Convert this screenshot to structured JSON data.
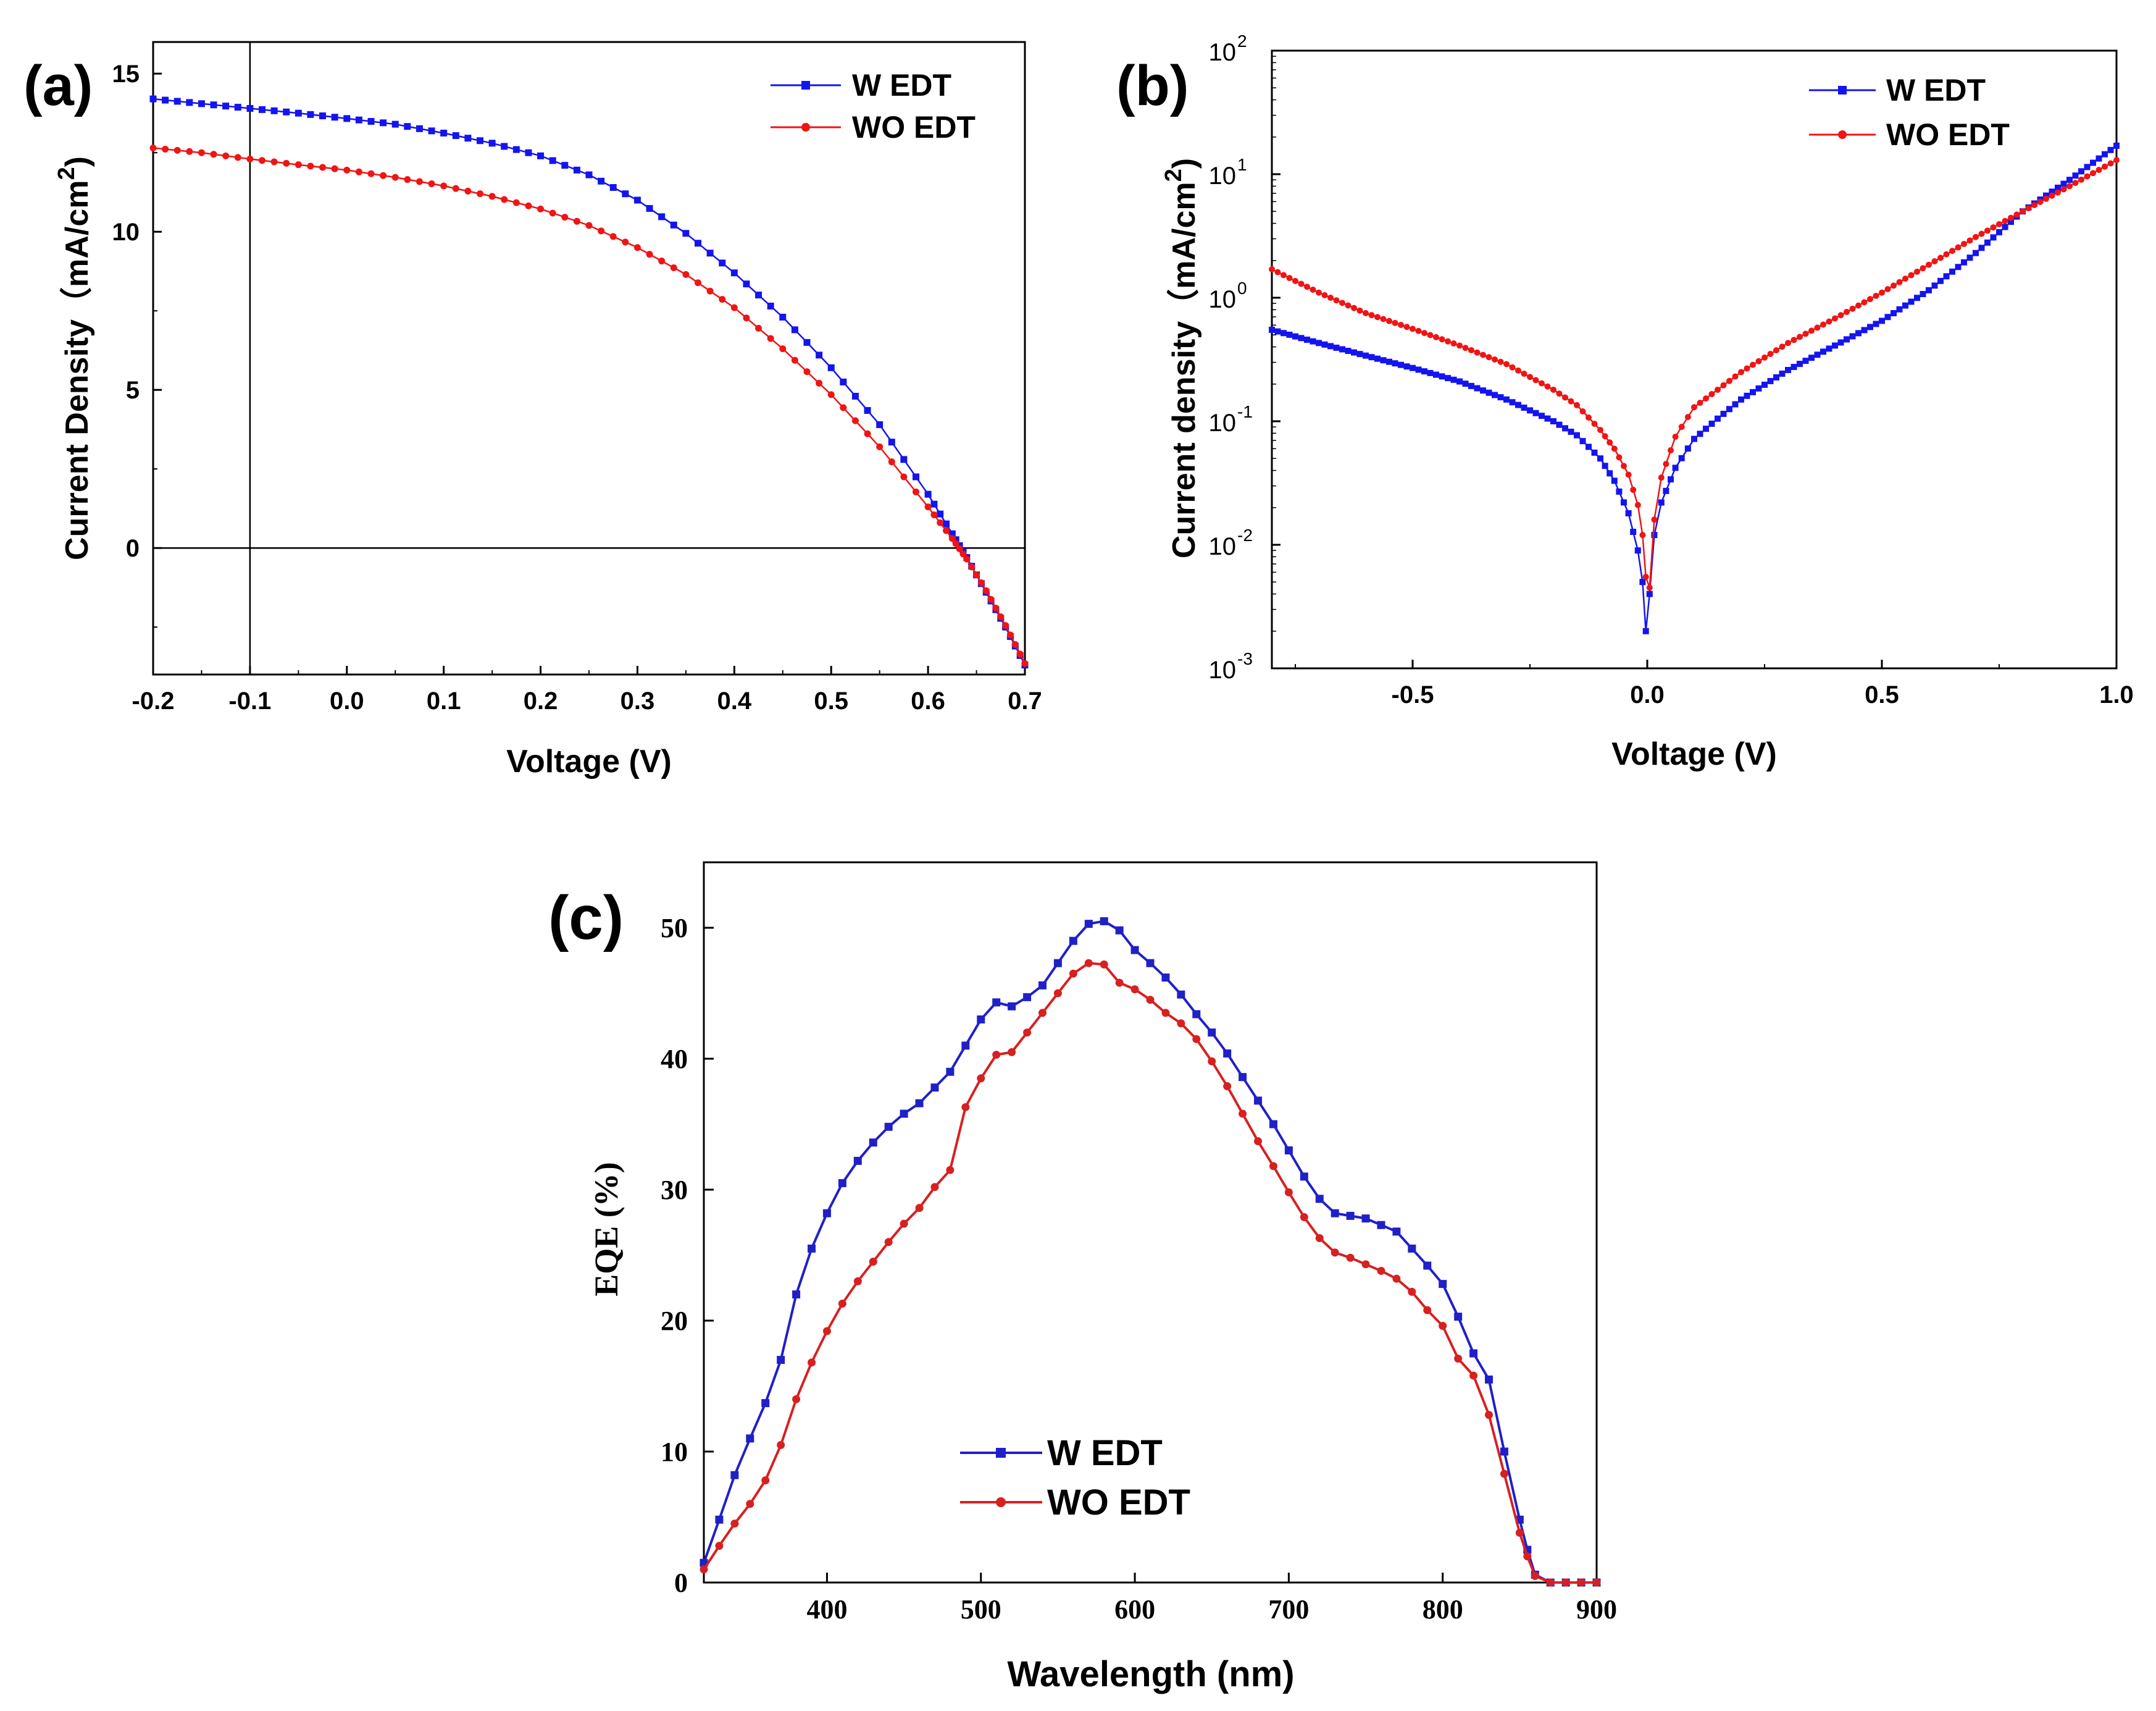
{
  "chart_data": [
    {
      "id": "a",
      "panel_label": "(a)",
      "type": "line",
      "xlabel": "Voltage (V)",
      "ylabel": "Current Density（mA/cm",
      "ylabel_sup": "2",
      "ylabel_close": ")",
      "xlim": [
        -0.2,
        0.7
      ],
      "ylim": [
        -4,
        16
      ],
      "xticks": [
        -0.2,
        -0.1,
        0.0,
        0.1,
        0.2,
        0.3,
        0.4,
        0.5,
        0.6,
        0.7
      ],
      "xtick_labels": [
        "-0.2",
        "-0.1",
        "0.0",
        "0.1",
        "0.2",
        "0.3",
        "0.4",
        "0.5",
        "0.6",
        "0.7"
      ],
      "yticks": [
        0,
        5,
        10,
        15
      ],
      "ytick_labels": [
        "0",
        "5",
        "10",
        "15"
      ],
      "reference_lines": {
        "x": -0.1,
        "y": 0
      },
      "legend": "top-right",
      "series": [
        {
          "name": "W EDT",
          "color": "#1414f0",
          "marker": "square",
          "points": [
            [
              -0.2,
              14.2
            ],
            [
              -0.15,
              14.05
            ],
            [
              -0.1,
              13.9
            ],
            [
              -0.05,
              13.75
            ],
            [
              0.0,
              13.58
            ],
            [
              0.05,
              13.4
            ],
            [
              0.1,
              13.12
            ],
            [
              0.15,
              12.8
            ],
            [
              0.2,
              12.4
            ],
            [
              0.25,
              11.8
            ],
            [
              0.3,
              11.0
            ],
            [
              0.35,
              9.95
            ],
            [
              0.4,
              8.7
            ],
            [
              0.45,
              7.3
            ],
            [
              0.5,
              5.7
            ],
            [
              0.55,
              3.9
            ],
            [
              0.6,
              1.7
            ],
            [
              0.625,
              0.45
            ],
            [
              0.64,
              -0.3
            ],
            [
              0.66,
              -1.4
            ],
            [
              0.68,
              -2.5
            ],
            [
              0.7,
              -3.7
            ]
          ]
        },
        {
          "name": "WO EDT",
          "color": "#f01414",
          "marker": "circle",
          "points": [
            [
              -0.2,
              12.65
            ],
            [
              -0.15,
              12.5
            ],
            [
              -0.1,
              12.3
            ],
            [
              -0.05,
              12.12
            ],
            [
              0.0,
              11.95
            ],
            [
              0.05,
              11.72
            ],
            [
              0.1,
              11.45
            ],
            [
              0.15,
              11.12
            ],
            [
              0.2,
              10.72
            ],
            [
              0.25,
              10.2
            ],
            [
              0.3,
              9.5
            ],
            [
              0.35,
              8.65
            ],
            [
              0.4,
              7.6
            ],
            [
              0.45,
              6.3
            ],
            [
              0.5,
              4.85
            ],
            [
              0.55,
              3.2
            ],
            [
              0.6,
              1.3
            ],
            [
              0.625,
              0.3
            ],
            [
              0.64,
              -0.35
            ],
            [
              0.66,
              -1.35
            ],
            [
              0.68,
              -2.45
            ],
            [
              0.7,
              -3.65
            ]
          ]
        }
      ]
    },
    {
      "id": "b",
      "panel_label": "(b)",
      "type": "line",
      "yscale": "log",
      "xlabel": "Voltage (V)",
      "ylabel": "Current density（mA/cm",
      "ylabel_sup": "2",
      "ylabel_close": ")",
      "xlim": [
        -0.8,
        1.0
      ],
      "ylim_exponent": [
        -3,
        2
      ],
      "xticks": [
        -0.5,
        0.0,
        0.5,
        1.0
      ],
      "xtick_labels": [
        "-0.5",
        "0.0",
        "0.5",
        "1.0"
      ],
      "yticks": [
        0.001,
        0.01,
        0.1,
        1,
        10,
        100
      ],
      "ytick_base": "10",
      "ytick_exponents": [
        "-3",
        "-2",
        "-1",
        "0",
        "1",
        "2"
      ],
      "legend": "top-right",
      "series": [
        {
          "name": "W EDT",
          "color": "#1414f0",
          "marker": "square",
          "points": [
            [
              -0.8,
              0.55
            ],
            [
              -0.7,
              0.43
            ],
            [
              -0.6,
              0.34
            ],
            [
              -0.5,
              0.27
            ],
            [
              -0.4,
              0.21
            ],
            [
              -0.3,
              0.15
            ],
            [
              -0.2,
              0.1
            ],
            [
              -0.15,
              0.077
            ],
            [
              -0.1,
              0.05
            ],
            [
              -0.07,
              0.033
            ],
            [
              -0.04,
              0.018
            ],
            [
              -0.02,
              0.009
            ],
            [
              -0.01,
              0.005
            ],
            [
              -0.003,
              0.002
            ],
            [
              0.005,
              0.004
            ],
            [
              0.015,
              0.012
            ],
            [
              0.03,
              0.022
            ],
            [
              0.06,
              0.042
            ],
            [
              0.1,
              0.072
            ],
            [
              0.15,
              0.105
            ],
            [
              0.2,
              0.15
            ],
            [
              0.3,
              0.26
            ],
            [
              0.4,
              0.41
            ],
            [
              0.5,
              0.65
            ],
            [
              0.6,
              1.15
            ],
            [
              0.7,
              2.3
            ],
            [
              0.8,
              5.0
            ],
            [
              0.9,
              9.0
            ],
            [
              1.0,
              17.0
            ]
          ]
        },
        {
          "name": "WO EDT",
          "color": "#f01414",
          "marker": "circle",
          "points": [
            [
              -0.8,
              1.7
            ],
            [
              -0.7,
              1.1
            ],
            [
              -0.6,
              0.75
            ],
            [
              -0.5,
              0.56
            ],
            [
              -0.4,
              0.41
            ],
            [
              -0.3,
              0.29
            ],
            [
              -0.2,
              0.18
            ],
            [
              -0.15,
              0.135
            ],
            [
              -0.1,
              0.085
            ],
            [
              -0.07,
              0.06
            ],
            [
              -0.04,
              0.037
            ],
            [
              -0.02,
              0.021
            ],
            [
              -0.01,
              0.012
            ],
            [
              -0.003,
              0.0055
            ],
            [
              0.005,
              0.0045
            ],
            [
              0.015,
              0.016
            ],
            [
              0.03,
              0.035
            ],
            [
              0.06,
              0.075
            ],
            [
              0.1,
              0.13
            ],
            [
              0.15,
              0.18
            ],
            [
              0.2,
              0.25
            ],
            [
              0.3,
              0.43
            ],
            [
              0.4,
              0.68
            ],
            [
              0.5,
              1.1
            ],
            [
              0.6,
              1.85
            ],
            [
              0.7,
              3.1
            ],
            [
              0.8,
              5.0
            ],
            [
              0.9,
              8.0
            ],
            [
              1.0,
              13.0
            ]
          ]
        }
      ]
    },
    {
      "id": "c",
      "panel_label": "(c)",
      "type": "line",
      "xlabel": "Wavelength (nm)",
      "ylabel": "EQE (%)",
      "xlim": [
        320,
        900
      ],
      "ylim": [
        0,
        55
      ],
      "xticks": [
        400,
        500,
        600,
        700,
        800,
        900
      ],
      "xtick_labels": [
        "400",
        "500",
        "600",
        "700",
        "800",
        "900"
      ],
      "yticks": [
        0,
        10,
        20,
        30,
        40,
        50
      ],
      "ytick_labels": [
        "0",
        "10",
        "20",
        "30",
        "40",
        "50"
      ],
      "legend": "bottom-center",
      "series": [
        {
          "name": "W EDT",
          "color": "#2020c8",
          "marker": "square",
          "points": [
            [
              320,
              1.5
            ],
            [
              330,
              4.8
            ],
            [
              340,
              8.2
            ],
            [
              350,
              11.0
            ],
            [
              360,
              13.7
            ],
            [
              370,
              17.0
            ],
            [
              380,
              22.0
            ],
            [
              390,
              25.5
            ],
            [
              400,
              28.2
            ],
            [
              410,
              30.5
            ],
            [
              420,
              32.2
            ],
            [
              430,
              33.6
            ],
            [
              440,
              34.8
            ],
            [
              450,
              35.8
            ],
            [
              460,
              36.6
            ],
            [
              470,
              37.8
            ],
            [
              480,
              39.0
            ],
            [
              490,
              41.0
            ],
            [
              500,
              43.0
            ],
            [
              510,
              44.3
            ],
            [
              520,
              44.0
            ],
            [
              530,
              44.7
            ],
            [
              540,
              45.6
            ],
            [
              550,
              47.3
            ],
            [
              560,
              49.0
            ],
            [
              570,
              50.3
            ],
            [
              580,
              50.5
            ],
            [
              590,
              49.8
            ],
            [
              600,
              48.3
            ],
            [
              610,
              47.3
            ],
            [
              620,
              46.2
            ],
            [
              630,
              44.9
            ],
            [
              640,
              43.4
            ],
            [
              650,
              42.0
            ],
            [
              660,
              40.4
            ],
            [
              670,
              38.6
            ],
            [
              680,
              36.8
            ],
            [
              690,
              35.0
            ],
            [
              700,
              33.0
            ],
            [
              710,
              31.0
            ],
            [
              720,
              29.3
            ],
            [
              730,
              28.2
            ],
            [
              740,
              28.0
            ],
            [
              750,
              27.8
            ],
            [
              760,
              27.3
            ],
            [
              770,
              26.8
            ],
            [
              780,
              25.5
            ],
            [
              790,
              24.2
            ],
            [
              800,
              22.8
            ],
            [
              810,
              20.3
            ],
            [
              820,
              17.5
            ],
            [
              830,
              15.5
            ],
            [
              840,
              10.0
            ],
            [
              850,
              4.8
            ],
            [
              855,
              2.5
            ],
            [
              860,
              0.6
            ],
            [
              870,
              0.0
            ],
            [
              880,
              0.0
            ],
            [
              890,
              0.0
            ],
            [
              900,
              0.0
            ]
          ]
        },
        {
          "name": "WO EDT",
          "color": "#d82020",
          "marker": "circle",
          "points": [
            [
              320,
              1.0
            ],
            [
              330,
              2.8
            ],
            [
              340,
              4.5
            ],
            [
              350,
              6.0
            ],
            [
              360,
              7.8
            ],
            [
              370,
              10.5
            ],
            [
              380,
              14.0
            ],
            [
              390,
              16.8
            ],
            [
              400,
              19.2
            ],
            [
              410,
              21.3
            ],
            [
              420,
              23.0
            ],
            [
              430,
              24.5
            ],
            [
              440,
              26.0
            ],
            [
              450,
              27.4
            ],
            [
              460,
              28.6
            ],
            [
              470,
              30.2
            ],
            [
              480,
              31.5
            ],
            [
              490,
              36.3
            ],
            [
              500,
              38.5
            ],
            [
              510,
              40.3
            ],
            [
              520,
              40.5
            ],
            [
              530,
              42.0
            ],
            [
              540,
              43.5
            ],
            [
              550,
              45.0
            ],
            [
              560,
              46.5
            ],
            [
              570,
              47.3
            ],
            [
              580,
              47.2
            ],
            [
              590,
              45.8
            ],
            [
              600,
              45.3
            ],
            [
              610,
              44.5
            ],
            [
              620,
              43.5
            ],
            [
              630,
              42.7
            ],
            [
              640,
              41.5
            ],
            [
              650,
              39.8
            ],
            [
              660,
              37.9
            ],
            [
              670,
              35.8
            ],
            [
              680,
              33.7
            ],
            [
              690,
              31.8
            ],
            [
              700,
              29.8
            ],
            [
              710,
              27.9
            ],
            [
              720,
              26.3
            ],
            [
              730,
              25.2
            ],
            [
              740,
              24.8
            ],
            [
              750,
              24.3
            ],
            [
              760,
              23.8
            ],
            [
              770,
              23.2
            ],
            [
              780,
              22.2
            ],
            [
              790,
              20.8
            ],
            [
              800,
              19.6
            ],
            [
              810,
              17.1
            ],
            [
              820,
              15.8
            ],
            [
              830,
              12.8
            ],
            [
              840,
              8.3
            ],
            [
              850,
              3.8
            ],
            [
              855,
              2.0
            ],
            [
              860,
              0.5
            ],
            [
              870,
              0.0
            ],
            [
              880,
              0.0
            ],
            [
              890,
              0.0
            ],
            [
              900,
              0.0
            ]
          ]
        }
      ]
    }
  ]
}
